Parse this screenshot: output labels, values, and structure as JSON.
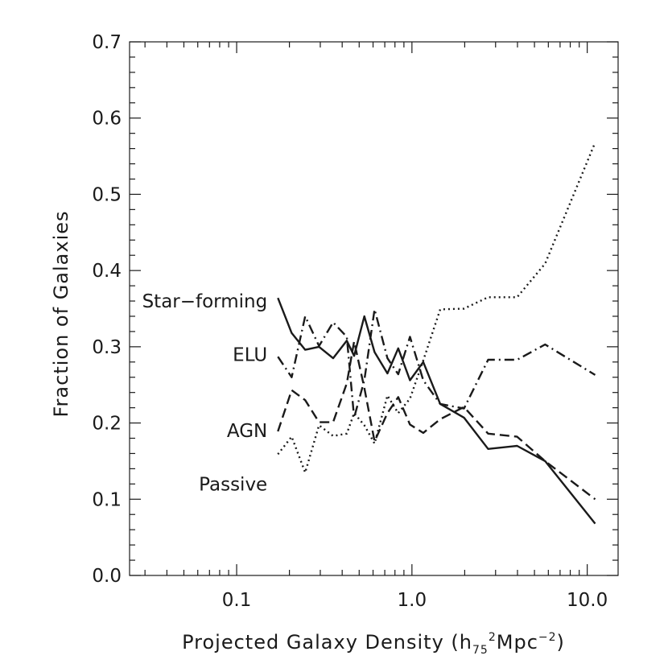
{
  "chart_data": {
    "type": "line",
    "title": "",
    "xlabel": "Projected Galaxy Density (h",
    "xlabel_sub": "75",
    "xlabel_sup": "2",
    "xlabel_tail": "Mpc",
    "xlabel_tail_sup": "−2",
    "xlabel_close": ")",
    "ylabel": "Fraction of Galaxies",
    "x_scale": "log",
    "xlim": [
      0.0245,
      15.0
    ],
    "ylim": [
      0.0,
      0.7
    ],
    "x_ticks": [
      {
        "value": 0.1,
        "label": "0.1"
      },
      {
        "value": 1.0,
        "label": "1.0"
      },
      {
        "value": 10.0,
        "label": "10.0"
      }
    ],
    "y_ticks": [
      {
        "value": 0.0,
        "label": "0.0"
      },
      {
        "value": 0.1,
        "label": "0.1"
      },
      {
        "value": 0.2,
        "label": "0.2"
      },
      {
        "value": 0.3,
        "label": "0.3"
      },
      {
        "value": 0.4,
        "label": "0.4"
      },
      {
        "value": 0.5,
        "label": "0.5"
      },
      {
        "value": 0.6,
        "label": "0.6"
      },
      {
        "value": 0.7,
        "label": "0.7"
      }
    ],
    "grid": false,
    "legend": "none",
    "series": [
      {
        "name": "Star−forming",
        "line_style": "solid",
        "color": "#1a1a1a",
        "label_anchor_x": 0.17,
        "label_anchor_y": 0.36,
        "points": [
          [
            0.172,
            0.364
          ],
          [
            0.206,
            0.318
          ],
          [
            0.246,
            0.296
          ],
          [
            0.295,
            0.3
          ],
          [
            0.355,
            0.285
          ],
          [
            0.425,
            0.308
          ],
          [
            0.468,
            0.288
          ],
          [
            0.535,
            0.34
          ],
          [
            0.612,
            0.293
          ],
          [
            0.725,
            0.265
          ],
          [
            0.835,
            0.298
          ],
          [
            0.975,
            0.256
          ],
          [
            1.16,
            0.28
          ],
          [
            1.45,
            0.225
          ],
          [
            1.98,
            0.207
          ],
          [
            2.72,
            0.166
          ],
          [
            3.98,
            0.17
          ],
          [
            5.75,
            0.15
          ],
          [
            11.1,
            0.068
          ]
        ]
      },
      {
        "name": "ELU",
        "line_style": "dashdot",
        "color": "#1a1a1a",
        "label_anchor_x": 0.17,
        "label_anchor_y": 0.29,
        "points": [
          [
            0.172,
            0.287
          ],
          [
            0.206,
            0.26
          ],
          [
            0.246,
            0.34
          ],
          [
            0.295,
            0.301
          ],
          [
            0.355,
            0.332
          ],
          [
            0.425,
            0.313
          ],
          [
            0.468,
            0.207
          ],
          [
            0.535,
            0.256
          ],
          [
            0.612,
            0.349
          ],
          [
            0.725,
            0.285
          ],
          [
            0.835,
            0.264
          ],
          [
            0.975,
            0.313
          ],
          [
            1.16,
            0.256
          ],
          [
            1.45,
            0.225
          ],
          [
            1.98,
            0.219
          ],
          [
            2.72,
            0.283
          ],
          [
            3.98,
            0.283
          ],
          [
            5.75,
            0.303
          ],
          [
            11.1,
            0.263
          ]
        ]
      },
      {
        "name": "AGN",
        "line_style": "dashed",
        "color": "#1a1a1a",
        "label_anchor_x": 0.17,
        "label_anchor_y": 0.19,
        "points": [
          [
            0.172,
            0.189
          ],
          [
            0.206,
            0.243
          ],
          [
            0.246,
            0.23
          ],
          [
            0.295,
            0.201
          ],
          [
            0.355,
            0.201
          ],
          [
            0.425,
            0.252
          ],
          [
            0.468,
            0.307
          ],
          [
            0.535,
            0.246
          ],
          [
            0.612,
            0.176
          ],
          [
            0.725,
            0.213
          ],
          [
            0.835,
            0.234
          ],
          [
            0.975,
            0.198
          ],
          [
            1.16,
            0.187
          ],
          [
            1.45,
            0.205
          ],
          [
            1.98,
            0.221
          ],
          [
            2.72,
            0.186
          ],
          [
            3.98,
            0.182
          ],
          [
            5.75,
            0.15
          ],
          [
            11.1,
            0.1
          ]
        ]
      },
      {
        "name": "Passive",
        "line_style": "dotted",
        "color": "#1a1a1a",
        "label_anchor_x": 0.17,
        "label_anchor_y": 0.12,
        "points": [
          [
            0.172,
            0.159
          ],
          [
            0.206,
            0.182
          ],
          [
            0.246,
            0.135
          ],
          [
            0.295,
            0.197
          ],
          [
            0.355,
            0.183
          ],
          [
            0.425,
            0.186
          ],
          [
            0.468,
            0.213
          ],
          [
            0.535,
            0.197
          ],
          [
            0.612,
            0.173
          ],
          [
            0.725,
            0.236
          ],
          [
            0.835,
            0.213
          ],
          [
            0.975,
            0.232
          ],
          [
            1.16,
            0.282
          ],
          [
            1.45,
            0.349
          ],
          [
            1.98,
            0.35
          ],
          [
            2.72,
            0.365
          ],
          [
            3.98,
            0.365
          ],
          [
            5.75,
            0.409
          ],
          [
            11.1,
            0.568
          ]
        ]
      }
    ]
  }
}
